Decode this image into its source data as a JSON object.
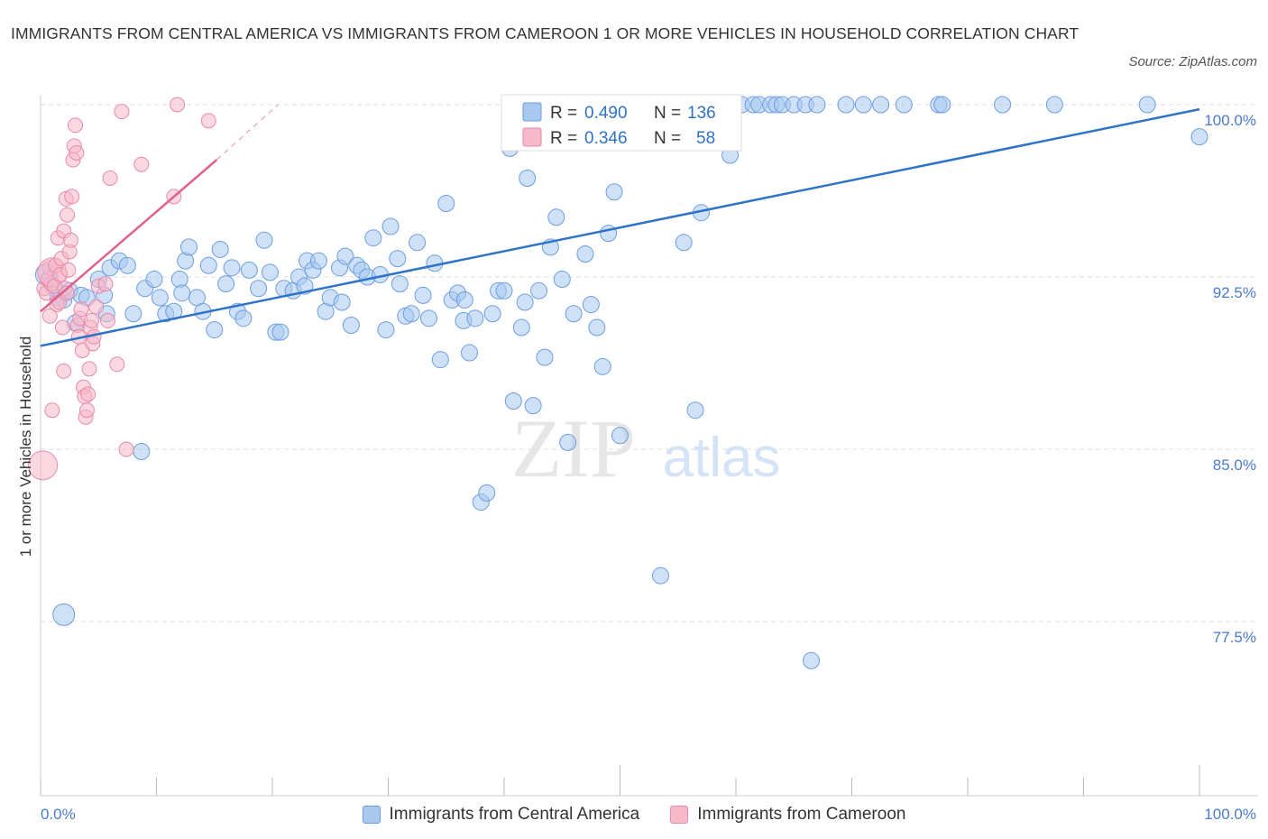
{
  "title": "IMMIGRANTS FROM CENTRAL AMERICA VS IMMIGRANTS FROM CAMEROON 1 OR MORE VEHICLES IN HOUSEHOLD CORRELATION CHART",
  "source": "Source: ZipAtlas.com",
  "watermark": {
    "zip": "ZIP",
    "atlas": "atlas"
  },
  "colors": {
    "blue_fill": "#a8c8f0",
    "blue_stroke": "#6d9de0",
    "blue_line": "#2e73c8",
    "pink_fill": "#f6b8ca",
    "pink_stroke": "#e88aa8",
    "pink_line": "#e0628c",
    "grid": "#dddddd",
    "tick_text": "#4a7bd0"
  },
  "legend": {
    "rows": [
      {
        "r_label": "R = ",
        "r_value": "0.490",
        "n_label": "N = ",
        "n_value": "136"
      },
      {
        "r_label": "R = ",
        "r_value": "0.346",
        "n_label": "N = ",
        "n_value": "58"
      }
    ]
  },
  "chart_data": {
    "type": "scatter",
    "xlabel": "",
    "ylabel": "1 or more Vehicles in Household",
    "xlim": [
      0,
      100
    ],
    "ylim": [
      70.5,
      101
    ],
    "x_tick_labels": [
      "0.0%",
      "100.0%"
    ],
    "y_tick_labels": [
      "100.0%",
      "92.5%",
      "85.0%",
      "77.5%"
    ],
    "y_tick_values": [
      100,
      92.5,
      85,
      77.5
    ],
    "grid": true,
    "legend_position": "top-center",
    "series": [
      {
        "name": "Immigrants from Central America",
        "color": "#a8c8f0",
        "R": 0.49,
        "N": 136,
        "trend": [
          [
            0,
            89.5
          ],
          [
            100,
            99.8
          ]
        ],
        "points": [
          [
            0.5,
            92.6
          ],
          [
            0.8,
            92.4
          ],
          [
            1.2,
            92.0
          ],
          [
            1.5,
            91.6
          ],
          [
            2.0,
            91.5
          ],
          [
            2.5,
            91.9
          ],
          [
            3.0,
            90.5
          ],
          [
            3.5,
            91.7
          ],
          [
            4.0,
            91.6
          ],
          [
            5.0,
            92.4
          ],
          [
            5.5,
            91.7
          ],
          [
            6.0,
            92.9
          ],
          [
            6.8,
            93.2
          ],
          [
            7.5,
            93.0
          ],
          [
            8.0,
            90.9
          ],
          [
            9.0,
            92.0
          ],
          [
            9.8,
            92.4
          ],
          [
            10.3,
            91.6
          ],
          [
            10.8,
            90.9
          ],
          [
            11.5,
            91.0
          ],
          [
            12.0,
            92.4
          ],
          [
            12.5,
            93.2
          ],
          [
            12.8,
            93.8
          ],
          [
            13.5,
            91.6
          ],
          [
            14.0,
            91.0
          ],
          [
            14.5,
            93.0
          ],
          [
            15.0,
            90.2
          ],
          [
            15.5,
            93.7
          ],
          [
            16.0,
            92.2
          ],
          [
            16.5,
            92.9
          ],
          [
            17.0,
            91.0
          ],
          [
            17.5,
            90.7
          ],
          [
            18.0,
            92.8
          ],
          [
            18.8,
            92.0
          ],
          [
            19.3,
            94.1
          ],
          [
            19.8,
            92.7
          ],
          [
            20.3,
            90.1
          ],
          [
            20.7,
            90.1
          ],
          [
            21.0,
            92.0
          ],
          [
            21.8,
            91.9
          ],
          [
            22.3,
            92.5
          ],
          [
            22.8,
            92.1
          ],
          [
            23.0,
            93.2
          ],
          [
            23.5,
            92.8
          ],
          [
            24.0,
            93.2
          ],
          [
            24.6,
            91.0
          ],
          [
            25.0,
            91.6
          ],
          [
            25.8,
            92.9
          ],
          [
            26.3,
            93.4
          ],
          [
            26.8,
            90.4
          ],
          [
            27.3,
            93.0
          ],
          [
            27.7,
            92.8
          ],
          [
            28.2,
            92.5
          ],
          [
            28.7,
            94.2
          ],
          [
            29.3,
            92.6
          ],
          [
            29.8,
            90.2
          ],
          [
            30.2,
            94.7
          ],
          [
            30.8,
            93.3
          ],
          [
            31.5,
            90.8
          ],
          [
            32.0,
            90.9
          ],
          [
            32.5,
            94.0
          ],
          [
            33.0,
            91.7
          ],
          [
            33.5,
            90.7
          ],
          [
            34.0,
            93.1
          ],
          [
            34.5,
            88.9
          ],
          [
            35.0,
            95.7
          ],
          [
            35.5,
            91.5
          ],
          [
            36.0,
            91.8
          ],
          [
            36.5,
            90.6
          ],
          [
            37.0,
            89.2
          ],
          [
            37.5,
            90.7
          ],
          [
            38.0,
            82.7
          ],
          [
            38.5,
            83.1
          ],
          [
            39.0,
            90.9
          ],
          [
            39.5,
            91.9
          ],
          [
            40.0,
            91.9
          ],
          [
            40.5,
            98.1
          ],
          [
            40.8,
            87.1
          ],
          [
            41.5,
            90.3
          ],
          [
            42.0,
            96.8
          ],
          [
            42.5,
            86.9
          ],
          [
            43.0,
            91.9
          ],
          [
            43.5,
            89.0
          ],
          [
            44.0,
            93.8
          ],
          [
            44.5,
            95.1
          ],
          [
            45.0,
            92.4
          ],
          [
            45.5,
            85.3
          ],
          [
            46.0,
            90.9
          ],
          [
            47.0,
            93.5
          ],
          [
            48.0,
            90.3
          ],
          [
            48.5,
            88.6
          ],
          [
            49.0,
            94.4
          ],
          [
            49.5,
            96.2
          ],
          [
            50.0,
            85.6
          ],
          [
            50.5,
            99.4
          ],
          [
            51.0,
            100
          ],
          [
            52.0,
            100
          ],
          [
            53.0,
            100
          ],
          [
            53.5,
            79.5
          ],
          [
            54.0,
            100
          ],
          [
            55.0,
            100
          ],
          [
            55.5,
            94.0
          ],
          [
            56.5,
            86.7
          ],
          [
            57.0,
            95.3
          ],
          [
            58.0,
            100
          ],
          [
            59.5,
            97.8
          ],
          [
            60.5,
            100
          ],
          [
            61.5,
            100
          ],
          [
            62.0,
            100
          ],
          [
            63.0,
            100
          ],
          [
            63.5,
            100
          ],
          [
            64.0,
            100
          ],
          [
            65.0,
            100
          ],
          [
            66.0,
            100
          ],
          [
            66.5,
            75.8
          ],
          [
            67.0,
            100
          ],
          [
            69.5,
            100
          ],
          [
            71.0,
            100
          ],
          [
            72.5,
            100
          ],
          [
            74.5,
            100
          ],
          [
            77.5,
            100
          ],
          [
            77.8,
            100
          ],
          [
            83.0,
            100
          ],
          [
            87.5,
            100
          ],
          [
            95.5,
            100
          ],
          [
            100.0,
            98.6
          ],
          [
            2.0,
            77.8
          ],
          [
            8.7,
            84.9
          ],
          [
            43.7,
            98.7
          ],
          [
            26.0,
            91.4
          ],
          [
            31.0,
            92.2
          ],
          [
            36.6,
            91.5
          ],
          [
            41.8,
            91.4
          ],
          [
            47.5,
            91.3
          ],
          [
            5.7,
            90.9
          ],
          [
            12.2,
            91.8
          ]
        ]
      },
      {
        "name": "Immigrants from Cameroon",
        "color": "#f6b8ca",
        "R": 0.346,
        "N": 58,
        "trend": [
          [
            0,
            91.0
          ],
          [
            15.2,
            97.6
          ]
        ],
        "trend_dashed": [
          [
            15.2,
            97.6
          ],
          [
            20.5,
            100
          ]
        ],
        "points": [
          [
            0.3,
            92.0
          ],
          [
            0.5,
            91.8
          ],
          [
            0.6,
            92.4
          ],
          [
            0.8,
            92.9
          ],
          [
            0.9,
            92.2
          ],
          [
            1.0,
            92.7
          ],
          [
            1.2,
            92.1
          ],
          [
            1.3,
            93.0
          ],
          [
            1.4,
            91.3
          ],
          [
            1.5,
            94.2
          ],
          [
            1.6,
            91.4
          ],
          [
            1.7,
            92.6
          ],
          [
            1.8,
            93.3
          ],
          [
            2.0,
            94.5
          ],
          [
            2.1,
            92.0
          ],
          [
            2.2,
            95.9
          ],
          [
            2.3,
            95.2
          ],
          [
            2.4,
            92.8
          ],
          [
            2.5,
            93.6
          ],
          [
            2.6,
            94.1
          ],
          [
            2.7,
            96.0
          ],
          [
            2.8,
            97.6
          ],
          [
            2.9,
            98.2
          ],
          [
            3.0,
            99.1
          ],
          [
            3.1,
            97.9
          ],
          [
            3.2,
            90.4
          ],
          [
            3.3,
            89.9
          ],
          [
            3.4,
            90.7
          ],
          [
            3.5,
            91.1
          ],
          [
            3.6,
            89.3
          ],
          [
            3.7,
            87.7
          ],
          [
            3.8,
            87.3
          ],
          [
            3.9,
            86.4
          ],
          [
            4.0,
            86.7
          ],
          [
            4.1,
            87.4
          ],
          [
            4.2,
            88.5
          ],
          [
            4.3,
            90.3
          ],
          [
            4.4,
            90.6
          ],
          [
            4.5,
            89.6
          ],
          [
            4.6,
            89.9
          ],
          [
            4.8,
            91.2
          ],
          [
            5.0,
            92.1
          ],
          [
            5.6,
            92.2
          ],
          [
            5.8,
            90.6
          ],
          [
            6.0,
            96.8
          ],
          [
            6.6,
            88.7
          ],
          [
            7.0,
            99.7
          ],
          [
            7.4,
            85.0
          ],
          [
            8.7,
            97.4
          ],
          [
            11.5,
            96.0
          ],
          [
            11.8,
            100
          ],
          [
            14.5,
            99.3
          ],
          [
            0.8,
            90.8
          ],
          [
            1.0,
            86.7
          ],
          [
            2.0,
            88.4
          ],
          [
            2.3,
            91.8
          ],
          [
            0.2,
            84.3
          ],
          [
            1.9,
            90.3
          ]
        ]
      }
    ]
  }
}
